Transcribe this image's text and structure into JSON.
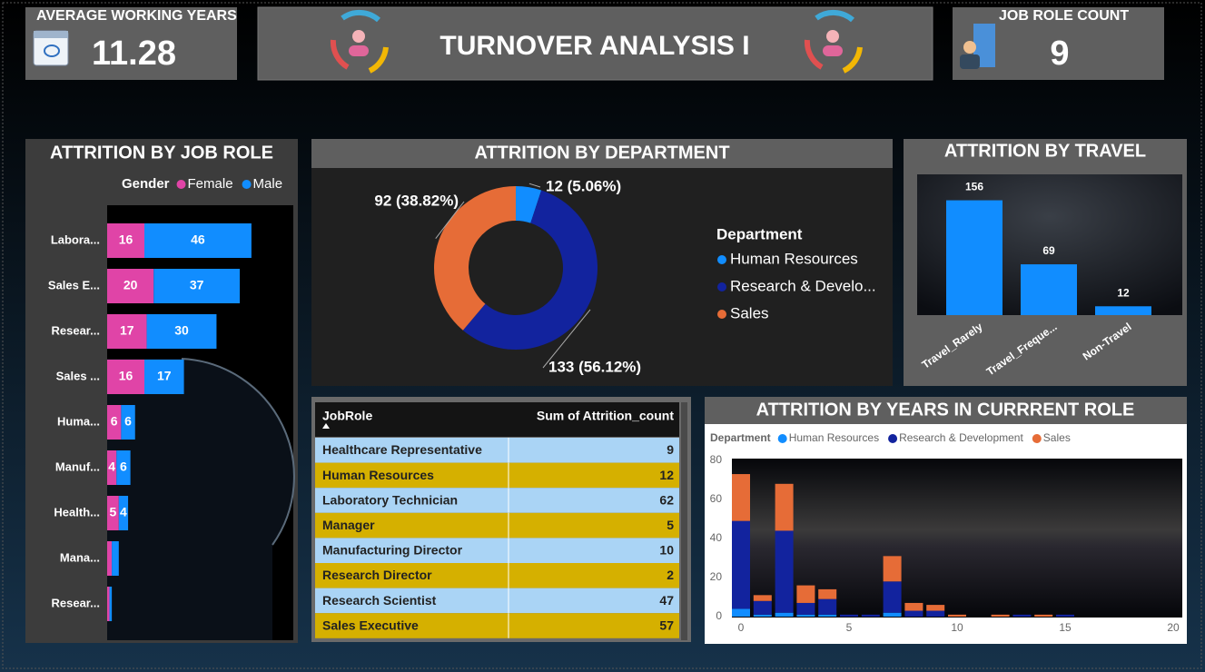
{
  "cards": [
    {
      "title": "AVERAGE WORKING YEARS",
      "value": 11.28
    },
    {
      "title": "JOB ROLE COUNT",
      "value": 9
    }
  ],
  "header": {
    "title": "TURNOVER  ANALYSIS  I"
  },
  "table": {
    "columns": [
      "JobRole",
      "Sum of Attrition_count"
    ],
    "rows": [
      [
        "Healthcare Representative",
        9
      ],
      [
        "Human Resources",
        12
      ],
      [
        "Laboratory Technician",
        62
      ],
      [
        "Manager",
        5
      ],
      [
        "Manufacturing Director",
        10
      ],
      [
        "Research Director",
        2
      ],
      [
        "Research Scientist",
        47
      ],
      [
        "Sales Executive",
        57
      ]
    ]
  },
  "chart_data": [
    {
      "type": "bar",
      "orientation": "horizontal",
      "stacked": true,
      "title": "ATTRITION BY JOB ROLE",
      "legend_title": "Gender",
      "categories": [
        "Labora...",
        "Sales E...",
        "Resear...",
        "Sales ...",
        "Huma...",
        "Manuf...",
        "Health...",
        "Mana...",
        "Resear..."
      ],
      "series": [
        {
          "name": "Female",
          "color": "#e044a7",
          "values": [
            16,
            20,
            17,
            16,
            6,
            4,
            5,
            2,
            1
          ]
        },
        {
          "name": "Male",
          "color": "#118dff",
          "values": [
            46,
            37,
            30,
            17,
            6,
            6,
            4,
            3,
            1
          ]
        }
      ],
      "xlim": [
        0,
        80
      ]
    },
    {
      "type": "donut",
      "title": "ATTRITION BY DEPARTMENT",
      "legend_title": "Department",
      "categories": [
        "Human Resources",
        "Research & Develo...",
        "Sales"
      ],
      "values": [
        12,
        133,
        92
      ],
      "value_labels": [
        "12 (5.06%)",
        "133 (56.12%)",
        "92 (38.82%)"
      ],
      "colors": [
        "#118dff",
        "#12239e",
        "#e66c37"
      ]
    },
    {
      "type": "bar",
      "title": "ATTRITION BY TRAVEL",
      "categories": [
        "Travel_Rarely",
        "Travel_Freque...",
        "Non-Travel"
      ],
      "values": [
        156,
        69,
        12
      ],
      "color": "#118dff",
      "ylim": [
        0,
        190
      ]
    },
    {
      "type": "bar",
      "stacked": true,
      "title": "ATTRITION BY YEARS IN CURRRENT ROLE",
      "legend_title": "Department",
      "x": [
        0,
        1,
        2,
        3,
        4,
        5,
        6,
        7,
        8,
        9,
        10,
        12,
        13,
        14,
        15
      ],
      "series": [
        {
          "name": "Human Resources",
          "color": "#118dff",
          "values": [
            4,
            1,
            2,
            1,
            1,
            0,
            0,
            2,
            0,
            0,
            0,
            0,
            0,
            0,
            0
          ]
        },
        {
          "name": "Research & Development",
          "color": "#12239e",
          "values": [
            45,
            7,
            42,
            6,
            8,
            1,
            1,
            16,
            3,
            3,
            0,
            0,
            1,
            0,
            1
          ]
        },
        {
          "name": "Sales",
          "color": "#e66c37",
          "values": [
            24,
            3,
            24,
            9,
            5,
            0,
            0,
            13,
            4,
            3,
            1,
            1,
            0,
            1,
            0
          ]
        }
      ],
      "xlim": [
        0,
        20
      ],
      "xticks": [
        0,
        5,
        10,
        15,
        20
      ],
      "ylim": [
        0,
        80
      ],
      "yticks": [
        0,
        20,
        40,
        60,
        80
      ]
    }
  ]
}
